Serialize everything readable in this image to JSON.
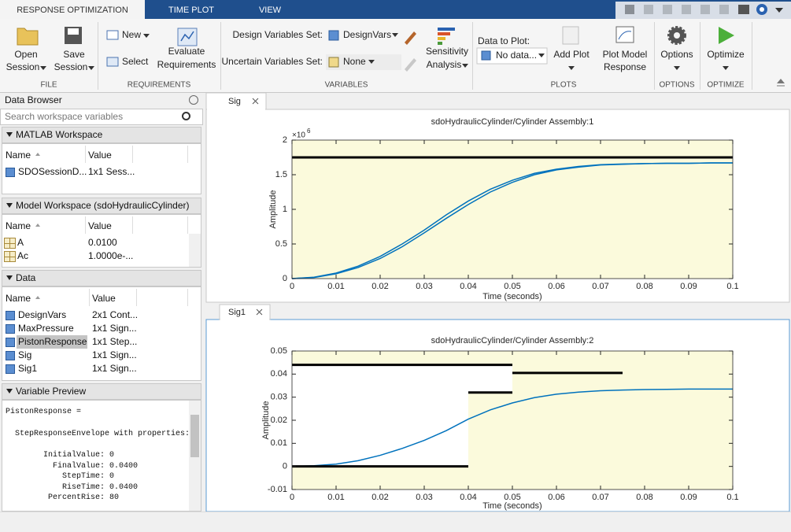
{
  "window_tabs": [
    "RESPONSE OPTIMIZATION",
    "TIME PLOT",
    "VIEW"
  ],
  "toolstrip": {
    "file": {
      "label": "FILE",
      "open": [
        "Open",
        "Session"
      ],
      "save": [
        "Save",
        "Session"
      ]
    },
    "requirements": {
      "label": "REQUIREMENTS",
      "new": "New",
      "select": "Select",
      "evaluate": [
        "Evaluate",
        "Requirements"
      ]
    },
    "variables": {
      "label": "VARIABLES",
      "design_label": "Design Variables Set:",
      "design_value": "DesignVars",
      "uncertain_label": "Uncertain Variables Set:",
      "uncertain_value": "None",
      "sensitivity": [
        "Sensitivity",
        "Analysis"
      ]
    },
    "plots": {
      "label": "PLOTS",
      "data_label": "Data to Plot:",
      "data_value": "No data...",
      "add_plot": "Add Plot",
      "plot_model": [
        "Plot Model",
        "Response"
      ]
    },
    "options": {
      "label": "OPTIONS",
      "button": "Options"
    },
    "optimize": {
      "label": "OPTIMIZE",
      "button": "Optimize"
    }
  },
  "data_browser": {
    "title": "Data Browser",
    "search_placeholder": "Search workspace variables",
    "sections": [
      {
        "title": "MATLAB Workspace",
        "columns": [
          "Name",
          "Value"
        ],
        "rows": [
          [
            "SDOSessionD...",
            "1x1 Sess..."
          ]
        ]
      },
      {
        "title": "Model Workspace (sdoHydraulicCylinder)",
        "columns": [
          "Name",
          "Value"
        ],
        "rows": [
          [
            "A",
            "0.0100"
          ],
          [
            "Ac",
            "1.0000e-..."
          ]
        ]
      },
      {
        "title": "Data",
        "columns": [
          "Name",
          "Value"
        ],
        "rows": [
          [
            "DesignVars",
            "2x1 Cont..."
          ],
          [
            "MaxPressure",
            "1x1 Sign..."
          ],
          [
            "PistonResponse",
            "1x1 Step..."
          ],
          [
            "Sig",
            "1x1 Sign..."
          ],
          [
            "Sig1",
            "1x1 Sign..."
          ]
        ]
      }
    ],
    "preview": {
      "title": "Variable Preview",
      "lines": [
        "PistonResponse =",
        "  StepResponseEnvelope with properties:",
        "        InitialValue: 0",
        "          FinalValue: 0.0400",
        "            StepTime: 0",
        "            RiseTime: 0.0400",
        "         PercentRise: 80"
      ]
    }
  },
  "chart_data": [
    {
      "type": "line",
      "tab": "Sig",
      "title": "sdoHydraulicCylinder/Cylinder Assembly:1",
      "x_label": "Time (seconds)",
      "y_label": "Amplitude",
      "y_exponent": {
        "base": "×10",
        "power": "6"
      },
      "x": [
        0,
        0.005,
        0.01,
        0.015,
        0.02,
        0.025,
        0.03,
        0.035,
        0.04,
        0.045,
        0.05,
        0.055,
        0.06,
        0.065,
        0.07,
        0.075,
        0.08,
        0.085,
        0.09,
        0.095,
        0.1
      ],
      "series": [
        {
          "color": "#0072bd",
          "values": [
            0,
            0.02,
            0.08,
            0.18,
            0.32,
            0.5,
            0.7,
            0.92,
            1.12,
            1.29,
            1.42,
            1.52,
            1.58,
            1.62,
            1.645,
            1.655,
            1.66,
            1.665,
            1.665,
            1.67,
            1.67
          ]
        },
        {
          "color": "#0072bd",
          "values": [
            0,
            0.015,
            0.07,
            0.16,
            0.29,
            0.46,
            0.66,
            0.87,
            1.07,
            1.25,
            1.39,
            1.5,
            1.57,
            1.61,
            1.64,
            1.65,
            1.66,
            1.665,
            1.665,
            1.67,
            1.67
          ]
        }
      ],
      "xlim": [
        0,
        0.1
      ],
      "xticks": [
        0,
        0.01,
        0.02,
        0.03,
        0.04,
        0.05,
        0.06,
        0.07,
        0.08,
        0.09,
        0.1
      ],
      "ylim": [
        0,
        2
      ],
      "yticks": [
        0,
        0.5,
        1,
        1.5,
        2
      ],
      "bounds": {
        "upper": [
          {
            "x": [
              0,
              0.1
            ],
            "y": 1.75
          }
        ],
        "lower": []
      },
      "bound_color": "#000000",
      "region_color": "#fbfadc"
    },
    {
      "type": "line",
      "tab": "Sig1",
      "title": "sdoHydraulicCylinder/Cylinder Assembly:2",
      "x_label": "Time (seconds)",
      "y_label": "Amplitude",
      "x": [
        0,
        0.005,
        0.01,
        0.015,
        0.02,
        0.025,
        0.03,
        0.035,
        0.04,
        0.045,
        0.05,
        0.055,
        0.06,
        0.065,
        0.07,
        0.075,
        0.08,
        0.085,
        0.09,
        0.095,
        0.1
      ],
      "series": [
        {
          "color": "#0072bd",
          "values": [
            0,
            0.0003,
            0.001,
            0.0025,
            0.0048,
            0.0078,
            0.0113,
            0.0155,
            0.0205,
            0.0245,
            0.0275,
            0.0298,
            0.0313,
            0.0322,
            0.0328,
            0.0331,
            0.0333,
            0.0334,
            0.0335,
            0.0335,
            0.0335
          ]
        }
      ],
      "xlim": [
        0,
        0.1
      ],
      "xticks": [
        0,
        0.01,
        0.02,
        0.03,
        0.04,
        0.05,
        0.06,
        0.07,
        0.08,
        0.09,
        0.1
      ],
      "ylim": [
        -0.01,
        0.05
      ],
      "yticks": [
        -0.01,
        0,
        0.01,
        0.02,
        0.03,
        0.04,
        0.05
      ],
      "bounds": {
        "upper": [
          {
            "x": [
              0,
              0.05
            ],
            "y": 0.044
          },
          {
            "x": [
              0.05,
              0.075
            ],
            "y": 0.0405
          }
        ],
        "lower": [
          {
            "x": [
              0,
              0.04
            ],
            "y": 0
          },
          {
            "x": [
              0.04,
              0.05
            ],
            "y": 0.032
          }
        ]
      },
      "bound_color": "#000000",
      "region_color": "#fbfadc"
    }
  ]
}
